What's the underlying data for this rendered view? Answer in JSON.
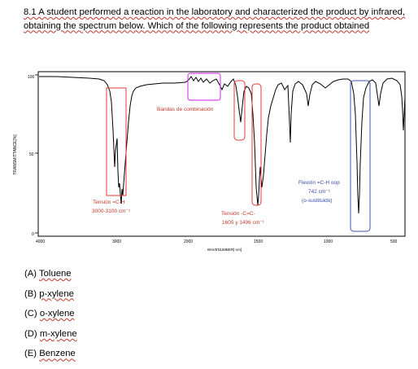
{
  "question": {
    "text": "8.1 A student performed a reaction in the laboratory and characterized the product by infrared, obtaining the spectrum below. Which of the following represents the product obtained"
  },
  "spectrum": {
    "y_axis_label": "TRANSMITTANCE[%]",
    "x_axis_label": "WAVENUMBER[-cm]",
    "y_ticks": [
      "100",
      "50",
      "0"
    ],
    "x_ticks": [
      "4000",
      "3000",
      "2000",
      "1500",
      "1000",
      "500"
    ],
    "annotations": {
      "combination": "Bandas de combinación",
      "ch_stretch_title": "Tensión   =C-H",
      "ch_stretch_range": "3000-3100 cm⁻¹",
      "cc_stretch_title": "Tensión      -C=C-",
      "cc_stretch_range": "1605 y 1496 cm⁻¹",
      "oop_title": "Flexión =C-H oop",
      "oop_value": "742 cm⁻¹",
      "oop_note": "(o-sustituido)"
    },
    "colors": {
      "red_box": "#e53935",
      "magenta_box": "#d946ef",
      "blue_box": "#3f51b5",
      "annotation_text": "#c0392b",
      "oop_text": "#3949ab"
    }
  },
  "options": [
    {
      "label": "(A)",
      "text": "Toluene"
    },
    {
      "label": "(B)",
      "text": "p-xylene"
    },
    {
      "label": "(C)",
      "text": "o-xylene"
    },
    {
      "label": "(D)",
      "text": "m-xylene"
    },
    {
      "label": "(E)",
      "text": "Benzene"
    }
  ]
}
